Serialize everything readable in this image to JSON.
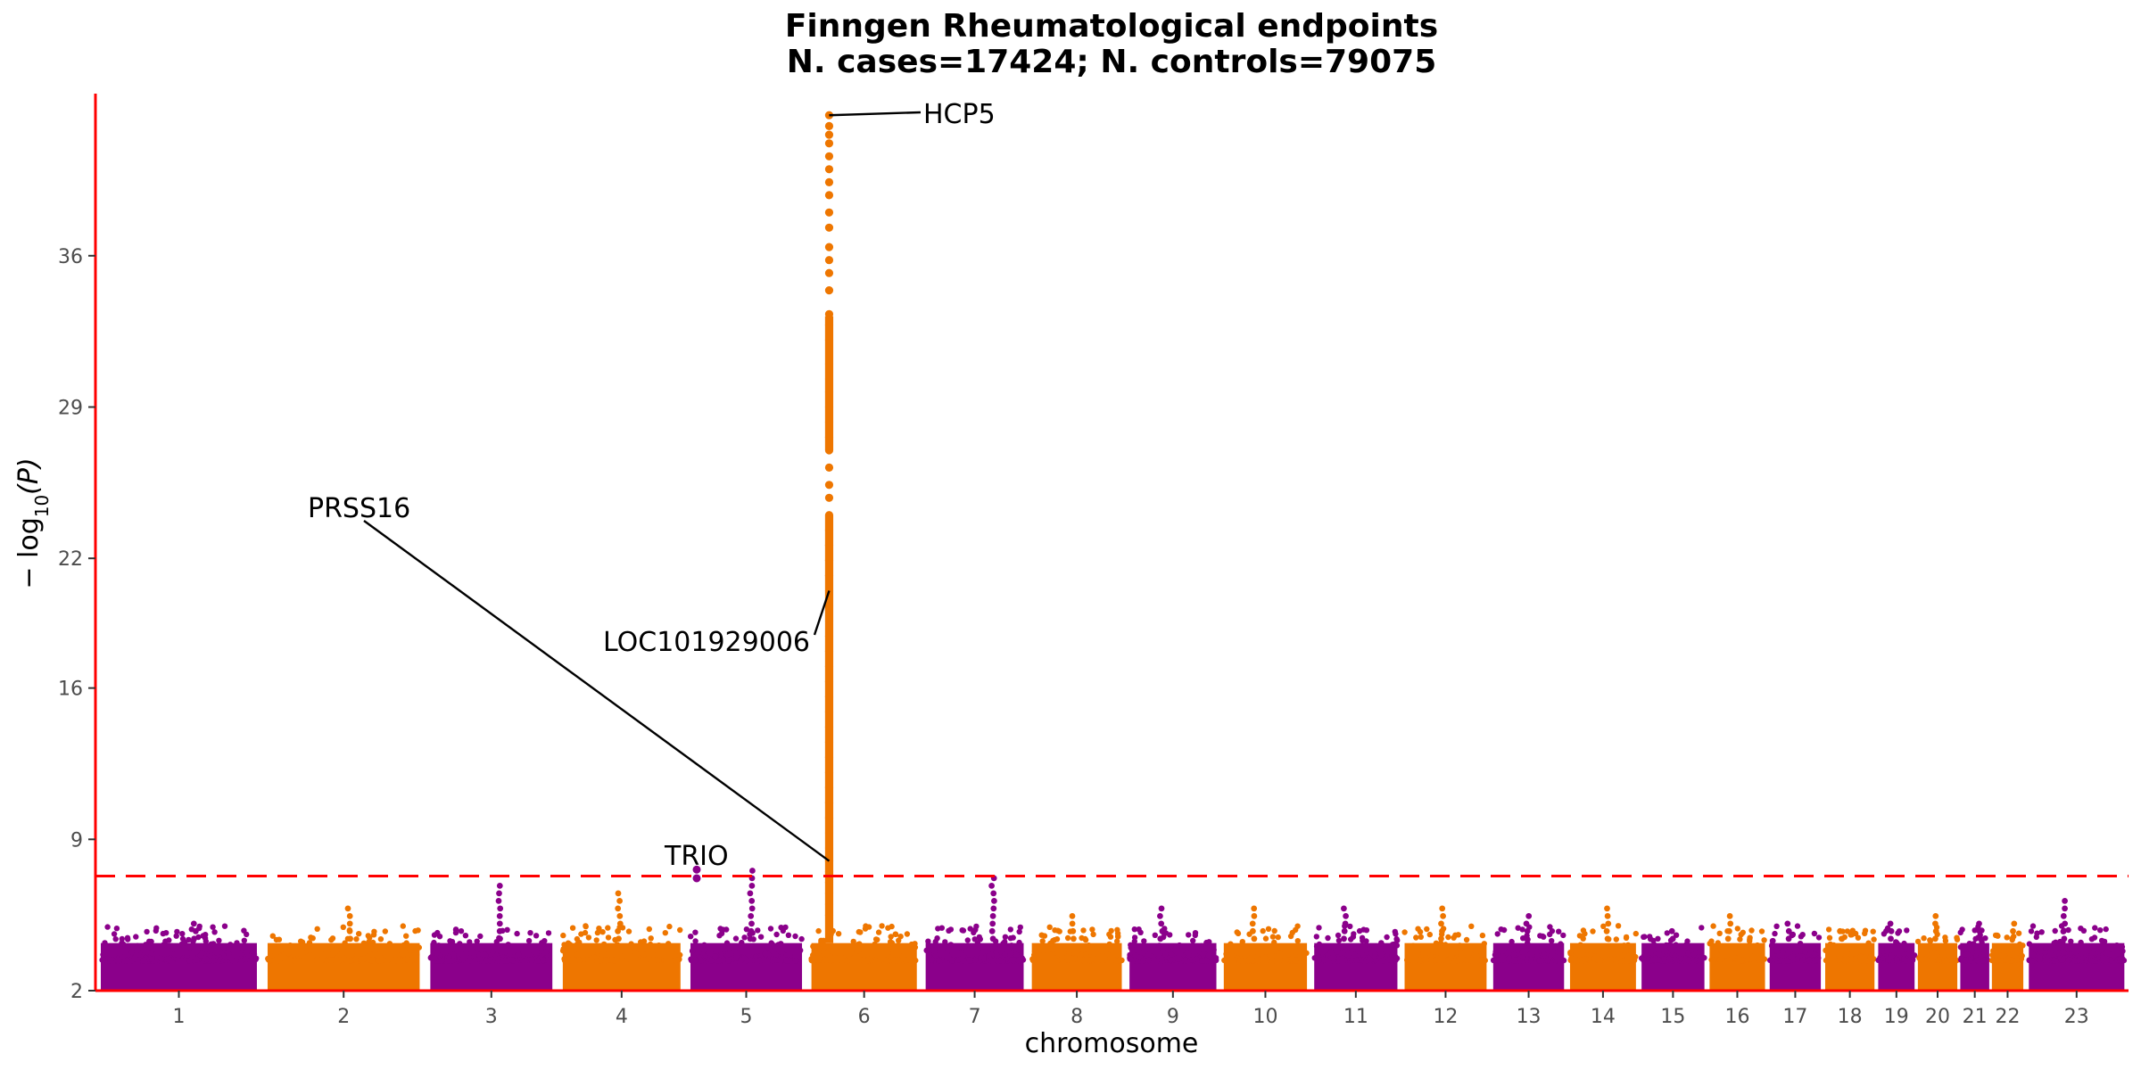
{
  "title_line1": "Finngen Rheumatological endpoints",
  "title_line2": "N. cases=17424; N. controls=79075",
  "xlabel": "chromosome",
  "ylabel_prefix": "− log",
  "ylabel_sub": "10",
  "ylabel_suffix": "(P)",
  "chart_data": {
    "type": "scatter",
    "subtype": "manhattan",
    "title": "Finngen Rheumatological endpoints\nN. cases=17424; N. controls=79075",
    "xlabel": "chromosome",
    "ylabel": "−log10(P)",
    "ylim": [
      2,
      43.5
    ],
    "yticks": [
      2,
      9,
      16,
      22,
      29,
      36
    ],
    "significance_threshold": 7.3,
    "colors": {
      "odd": "#8b008b",
      "even": "#ee7600",
      "threshold": "#ff0000",
      "axis": "#ff0000"
    },
    "chromosomes": [
      "1",
      "2",
      "3",
      "4",
      "5",
      "6",
      "7",
      "8",
      "9",
      "10",
      "11",
      "12",
      "13",
      "14",
      "15",
      "16",
      "17",
      "18",
      "19",
      "20",
      "21",
      "22",
      "23"
    ],
    "chromosome_max_peaks": [
      5.2,
      5.8,
      7.0,
      6.5,
      7.6,
      42.5,
      7.4,
      5.6,
      6.0,
      6.1,
      5.8,
      6.0,
      5.5,
      5.9,
      5.0,
      5.6,
      5.3,
      5.0,
      5.3,
      5.6,
      5.1,
      5.3,
      6.3
    ],
    "hla_peak": {
      "chromosome": "6",
      "values": [
        42.5,
        42.0,
        41.6,
        41.2,
        40.6,
        40.0,
        39.4,
        38.8,
        38.0,
        37.3,
        36.4,
        35.8,
        35.2,
        34.4,
        33.3,
        32.8,
        32.1,
        31.0,
        30.3,
        29.7,
        29.0,
        28.3,
        27.6,
        27.0,
        26.2,
        25.4,
        24.8,
        24.0,
        23.3,
        22.6,
        21.9,
        21.2,
        20.5,
        19.8,
        19.1,
        18.4,
        17.7,
        17.0,
        16.3,
        15.6,
        14.9,
        14.2,
        13.5,
        12.8,
        12.1,
        11.4,
        10.7,
        10.0,
        9.3,
        8.6,
        8.0,
        7.5,
        7.0,
        6.5,
        6.0,
        5.5
      ]
    },
    "annotations": [
      {
        "label": "HCP5",
        "chromosome": "6",
        "y": 42.5
      },
      {
        "label": "LOC101929006",
        "chromosome": "6",
        "y": 20.5
      },
      {
        "label": "PRSS16",
        "chromosome": "6",
        "y": 8.0
      },
      {
        "label": "TRIO",
        "chromosome": "5",
        "y": 7.6
      }
    ]
  }
}
